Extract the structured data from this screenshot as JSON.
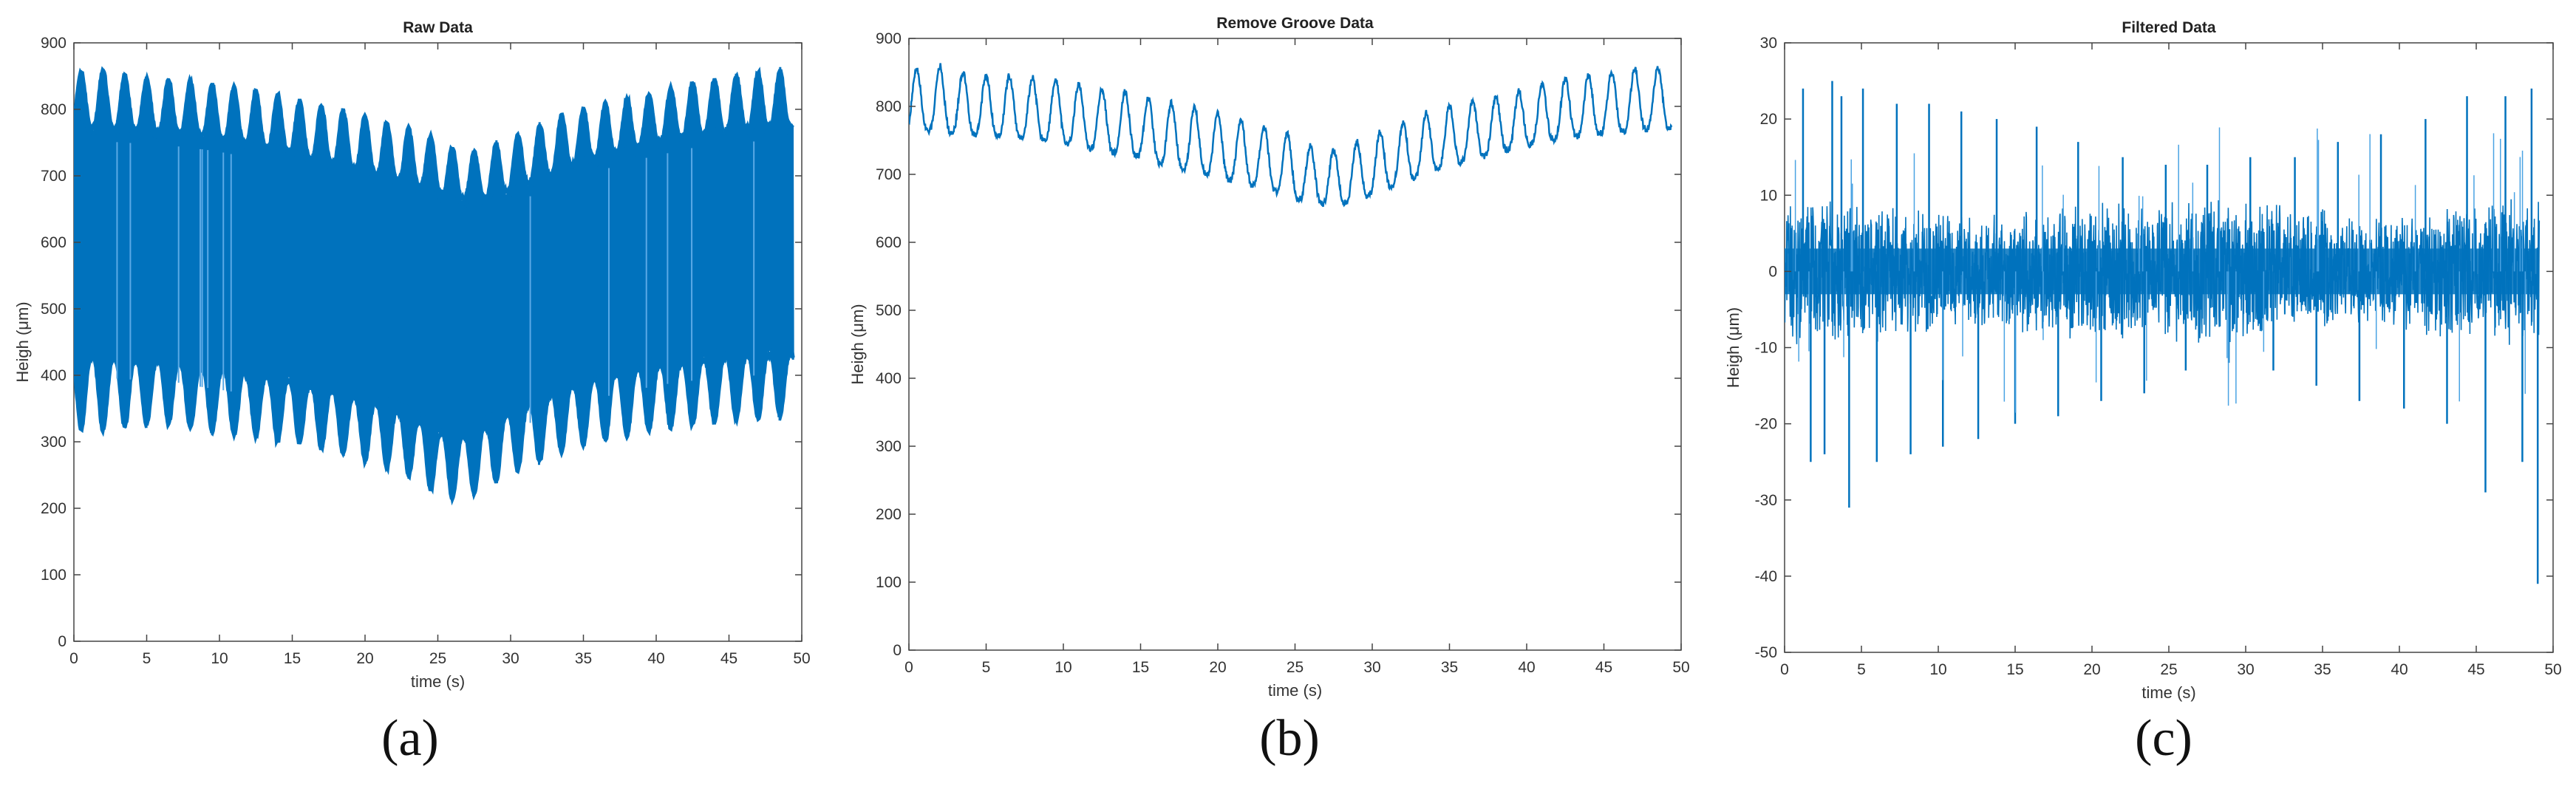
{
  "figure": {
    "panel_labels": [
      "(a)",
      "(b)",
      "(c)"
    ]
  },
  "chart_data": [
    {
      "type": "line",
      "title": "Raw Data",
      "xlabel": "time (s)",
      "ylabel": "Heigh (μm)",
      "xlim": [
        0,
        50
      ],
      "ylim": [
        0,
        900
      ],
      "xticks": [
        0,
        5,
        10,
        15,
        20,
        25,
        30,
        35,
        40,
        45,
        50
      ],
      "yticks": [
        0,
        100,
        200,
        300,
        400,
        500,
        600,
        700,
        800,
        900
      ],
      "grid": false,
      "color": "#0072BD",
      "series": [
        {
          "x": [
            0.5,
            2,
            3.5,
            5,
            6.5,
            8,
            9.5,
            11,
            12.5,
            14,
            15.5,
            17,
            18.5,
            20,
            21.5,
            23,
            24.5,
            26,
            27.5,
            29,
            30.5,
            32,
            33.5,
            35,
            36.5,
            38,
            39.5,
            41,
            42.5,
            44,
            45.5,
            47,
            48.5
          ],
          "upper_peak_values": [
            855,
            860,
            850,
            845,
            845,
            842,
            838,
            832,
            826,
            822,
            812,
            805,
            798,
            790,
            780,
            770,
            760,
            742,
            735,
            748,
            762,
            775,
            792,
            800,
            808,
            815,
            822,
            832,
            840,
            845,
            850,
            855,
            858
          ],
          "upper_trough_values": [
            775,
            772,
            770,
            768,
            766,
            762,
            758,
            752,
            745,
            740,
            732,
            722,
            716,
            705,
            698,
            690,
            680,
            668,
            664,
            670,
            682,
            695,
            710,
            722,
            730,
            740,
            748,
            755,
            762,
            765,
            770,
            772,
            775
          ],
          "lower_trough_values": [
            320,
            318,
            322,
            326,
            328,
            320,
            316,
            312,
            310,
            300,
            298,
            290,
            282,
            272,
            262,
            250,
            228,
            215,
            222,
            240,
            258,
            270,
            285,
            296,
            302,
            310,
            316,
            322,
            326,
            330,
            335,
            336,
            338
          ],
          "lower_peak_values": [
            430,
            425,
            425,
            420,
            422,
            415,
            410,
            405,
            400,
            395,
            388,
            380,
            372,
            362,
            352,
            340,
            320,
            305,
            315,
            332,
            350,
            365,
            378,
            390,
            398,
            405,
            412,
            418,
            422,
            425,
            428,
            430,
            432
          ]
        }
      ]
    },
    {
      "type": "line",
      "title": "Remove Groove Data",
      "xlabel": "time (s)",
      "ylabel": "Heigh (μm)",
      "xlim": [
        0,
        50
      ],
      "ylim": [
        0,
        900
      ],
      "xticks": [
        0,
        5,
        10,
        15,
        20,
        25,
        30,
        35,
        40,
        45,
        50
      ],
      "yticks": [
        0,
        100,
        200,
        300,
        400,
        500,
        600,
        700,
        800,
        900
      ],
      "grid": false,
      "color": "#0072BD",
      "series": [
        {
          "x": [
            0.5,
            2,
            3.5,
            5,
            6.5,
            8,
            9.5,
            11,
            12.5,
            14,
            15.5,
            17,
            18.5,
            20,
            21.5,
            23,
            24.5,
            26,
            27.5,
            29,
            30.5,
            32,
            33.5,
            35,
            36.5,
            38,
            39.5,
            41,
            42.5,
            44,
            45.5,
            47,
            48.5
          ],
          "peak_values": [
            855,
            860,
            850,
            845,
            845,
            842,
            838,
            832,
            826,
            822,
            812,
            805,
            798,
            790,
            780,
            770,
            760,
            742,
            735,
            748,
            762,
            775,
            792,
            800,
            808,
            815,
            822,
            832,
            840,
            845,
            850,
            855,
            858
          ],
          "trough_values": [
            765,
            762,
            760,
            758,
            756,
            752,
            748,
            742,
            735,
            730,
            722,
            712,
            706,
            695,
            688,
            680,
            670,
            658,
            655,
            662,
            675,
            688,
            702,
            714,
            722,
            732,
            740,
            748,
            755,
            758,
            762,
            765,
            768
          ]
        }
      ]
    },
    {
      "type": "line",
      "title": "Filtered Data",
      "xlabel": "time (s)",
      "ylabel": "Heigh (μm)",
      "xlim": [
        0,
        50
      ],
      "ylim": [
        -50,
        30
      ],
      "xticks": [
        0,
        5,
        10,
        15,
        20,
        25,
        30,
        35,
        40,
        45,
        50
      ],
      "yticks": [
        -50,
        -40,
        -30,
        -20,
        -10,
        0,
        10,
        20,
        30
      ],
      "grid": false,
      "color": "#0072BD",
      "series": [
        {
          "x": [
            1.2,
            1.7,
            2.6,
            3.1,
            3.7,
            4.2,
            5.1,
            6.0,
            7.3,
            8.2,
            9.4,
            10.3,
            11.5,
            12.6,
            13.8,
            15.0,
            16.4,
            17.8,
            19.1,
            20.6,
            22.0,
            23.4,
            24.8,
            26.1,
            27.5,
            28.9,
            30.3,
            31.8,
            33.2,
            34.6,
            36.0,
            37.4,
            38.8,
            40.3,
            41.7,
            43.1,
            44.4,
            45.6,
            46.9,
            48.0,
            48.6,
            49.0
          ],
          "spike_values": [
            24,
            -25,
            -24,
            25,
            23,
            -31,
            24,
            -25,
            22,
            -24,
            22,
            -23,
            21,
            -22,
            20,
            -20,
            19,
            -19,
            17,
            -17,
            15,
            -16,
            14,
            -13,
            14,
            -12,
            15,
            -13,
            15,
            -15,
            17,
            -17,
            18,
            -18,
            20,
            -20,
            23,
            -29,
            23,
            -25,
            24,
            -41
          ],
          "noise_band": [
            -8,
            8
          ]
        }
      ]
    }
  ]
}
